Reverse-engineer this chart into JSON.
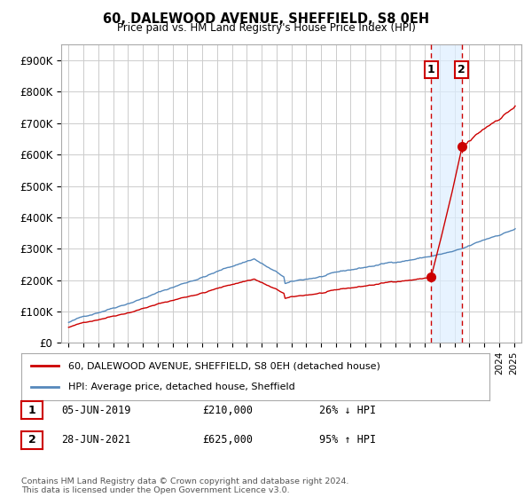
{
  "title": "60, DALEWOOD AVENUE, SHEFFIELD, S8 0EH",
  "subtitle": "Price paid vs. HM Land Registry's House Price Index (HPI)",
  "ylabel_ticks": [
    "£0",
    "£100K",
    "£200K",
    "£300K",
    "£400K",
    "£500K",
    "£600K",
    "£700K",
    "£800K",
    "£900K"
  ],
  "ytick_values": [
    0,
    100000,
    200000,
    300000,
    400000,
    500000,
    600000,
    700000,
    800000,
    900000
  ],
  "ylim": [
    0,
    950000
  ],
  "xlim_start": 1994.5,
  "xlim_end": 2025.5,
  "transaction1_date": 2019.43,
  "transaction1_price": 210000,
  "transaction1_label": "1",
  "transaction2_date": 2021.49,
  "transaction2_price": 625000,
  "transaction2_label": "2",
  "red_color": "#cc0000",
  "blue_color": "#5588bb",
  "shade_color": "#ddeeff",
  "dashed_color": "#cc0000",
  "legend_label_red": "60, DALEWOOD AVENUE, SHEFFIELD, S8 0EH (detached house)",
  "legend_label_blue": "HPI: Average price, detached house, Sheffield",
  "annotation1_date": "05-JUN-2019",
  "annotation1_price": "£210,000",
  "annotation1_hpi": "26% ↓ HPI",
  "annotation2_date": "28-JUN-2021",
  "annotation2_price": "£625,000",
  "annotation2_hpi": "95% ↑ HPI",
  "footer": "Contains HM Land Registry data © Crown copyright and database right 2024.\nThis data is licensed under the Open Government Licence v3.0.",
  "background_color": "#ffffff",
  "grid_color": "#cccccc"
}
